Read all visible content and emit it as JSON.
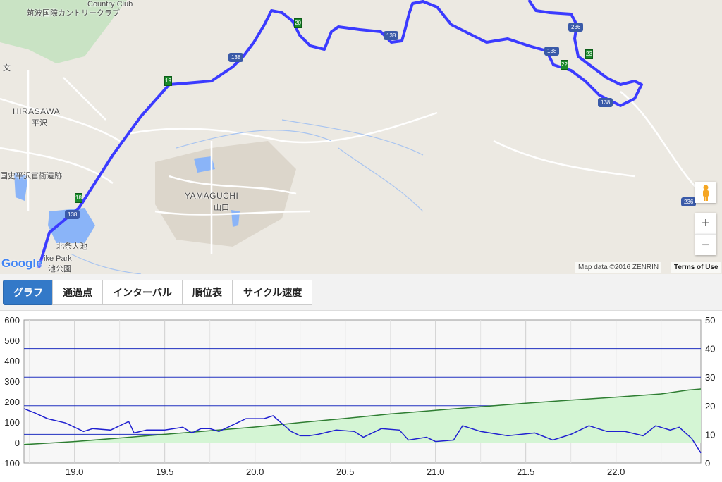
{
  "map": {
    "labels": {
      "country_club_jp": "筑波国際カントリークラブ",
      "country_club_en": "Country Club",
      "bun": "文",
      "hirasawa_en": "HIRASAWA",
      "hirasawa_jp": "平沢",
      "ruins": "国史平沢官衙遺跡",
      "yamaguchi_en": "YAMAGUCHI",
      "yamaguchi_jp": "山口",
      "hojo_pond": "北条大池",
      "park_en": "ike Park",
      "park_jp": "池公園"
    },
    "markers": [
      "18",
      "19",
      "20",
      "22",
      "23"
    ],
    "route_shields": [
      "138",
      "138",
      "138",
      "138",
      "138",
      "236",
      "236"
    ],
    "google_logo": "Google",
    "attribution": "Map data ©2016 ZENRIN",
    "terms": "Terms of Use",
    "zoom_in": "+",
    "zoom_out": "−",
    "route_color": "#3b3bff"
  },
  "tabs": [
    {
      "label": "グラフ",
      "active": true
    },
    {
      "label": "通過点",
      "active": false
    },
    {
      "label": "インターバル",
      "active": false
    },
    {
      "label": "順位表",
      "active": false
    },
    {
      "label": "サイクル速度",
      "active": false
    }
  ],
  "chart_data": {
    "type": "line",
    "x_ticks": [
      "19.0",
      "19.5",
      "20.0",
      "20.5",
      "21.0",
      "21.5",
      "22.0"
    ],
    "xlim": [
      18.72,
      22.47
    ],
    "y_left_ticks": [
      "600",
      "500",
      "400",
      "300",
      "200",
      "100",
      "0",
      "-100"
    ],
    "ylim_left": [
      -100,
      600
    ],
    "y_right_ticks": [
      "50",
      "40",
      "30",
      "20",
      "10",
      "0"
    ],
    "ylim_right": [
      0,
      50
    ],
    "grid_v": true,
    "series": [
      {
        "color": "#2e7d32",
        "fill": "#d4f5d4",
        "axis": "left",
        "x": [
          18.72,
          19.0,
          19.25,
          19.5,
          19.75,
          20.0,
          20.25,
          20.5,
          20.75,
          21.0,
          21.25,
          21.5,
          21.75,
          22.0,
          22.25,
          22.4,
          22.47
        ],
        "values": [
          -10,
          5,
          22,
          40,
          58,
          76,
          98,
          118,
          140,
          158,
          175,
          192,
          208,
          222,
          238,
          257,
          262
        ]
      },
      {
        "color": "#2020d0",
        "axis": "right",
        "x": [
          18.72,
          18.78,
          18.85,
          18.95,
          19.05,
          19.1,
          19.2,
          19.3,
          19.33,
          19.4,
          19.5,
          19.6,
          19.65,
          19.7,
          19.75,
          19.8,
          19.9,
          19.95,
          20.05,
          20.1,
          20.2,
          20.25,
          20.3,
          20.35,
          20.45,
          20.55,
          20.6,
          20.7,
          20.8,
          20.85,
          20.95,
          21.0,
          21.1,
          21.15,
          21.25,
          21.35,
          21.4,
          21.55,
          21.65,
          21.75,
          21.85,
          21.95,
          22.05,
          22.15,
          22.22,
          22.3,
          22.35,
          22.42,
          22.47
        ],
        "values": [
          19,
          17.5,
          15.5,
          14,
          11,
          12,
          11.5,
          14.5,
          10.5,
          11.5,
          11.5,
          12.5,
          10.5,
          12,
          12,
          11,
          14,
          15.5,
          15.5,
          16.5,
          11,
          9.5,
          9.5,
          10,
          11.5,
          11,
          9,
          12,
          11.5,
          8,
          9,
          7.5,
          8,
          13,
          11,
          10,
          9.5,
          10.5,
          8,
          10,
          13,
          11,
          11,
          9.5,
          13,
          11.5,
          12.5,
          8.5,
          3.5
        ]
      }
    ],
    "horizontal_lines_right": [
      10,
      20,
      30,
      40
    ]
  }
}
